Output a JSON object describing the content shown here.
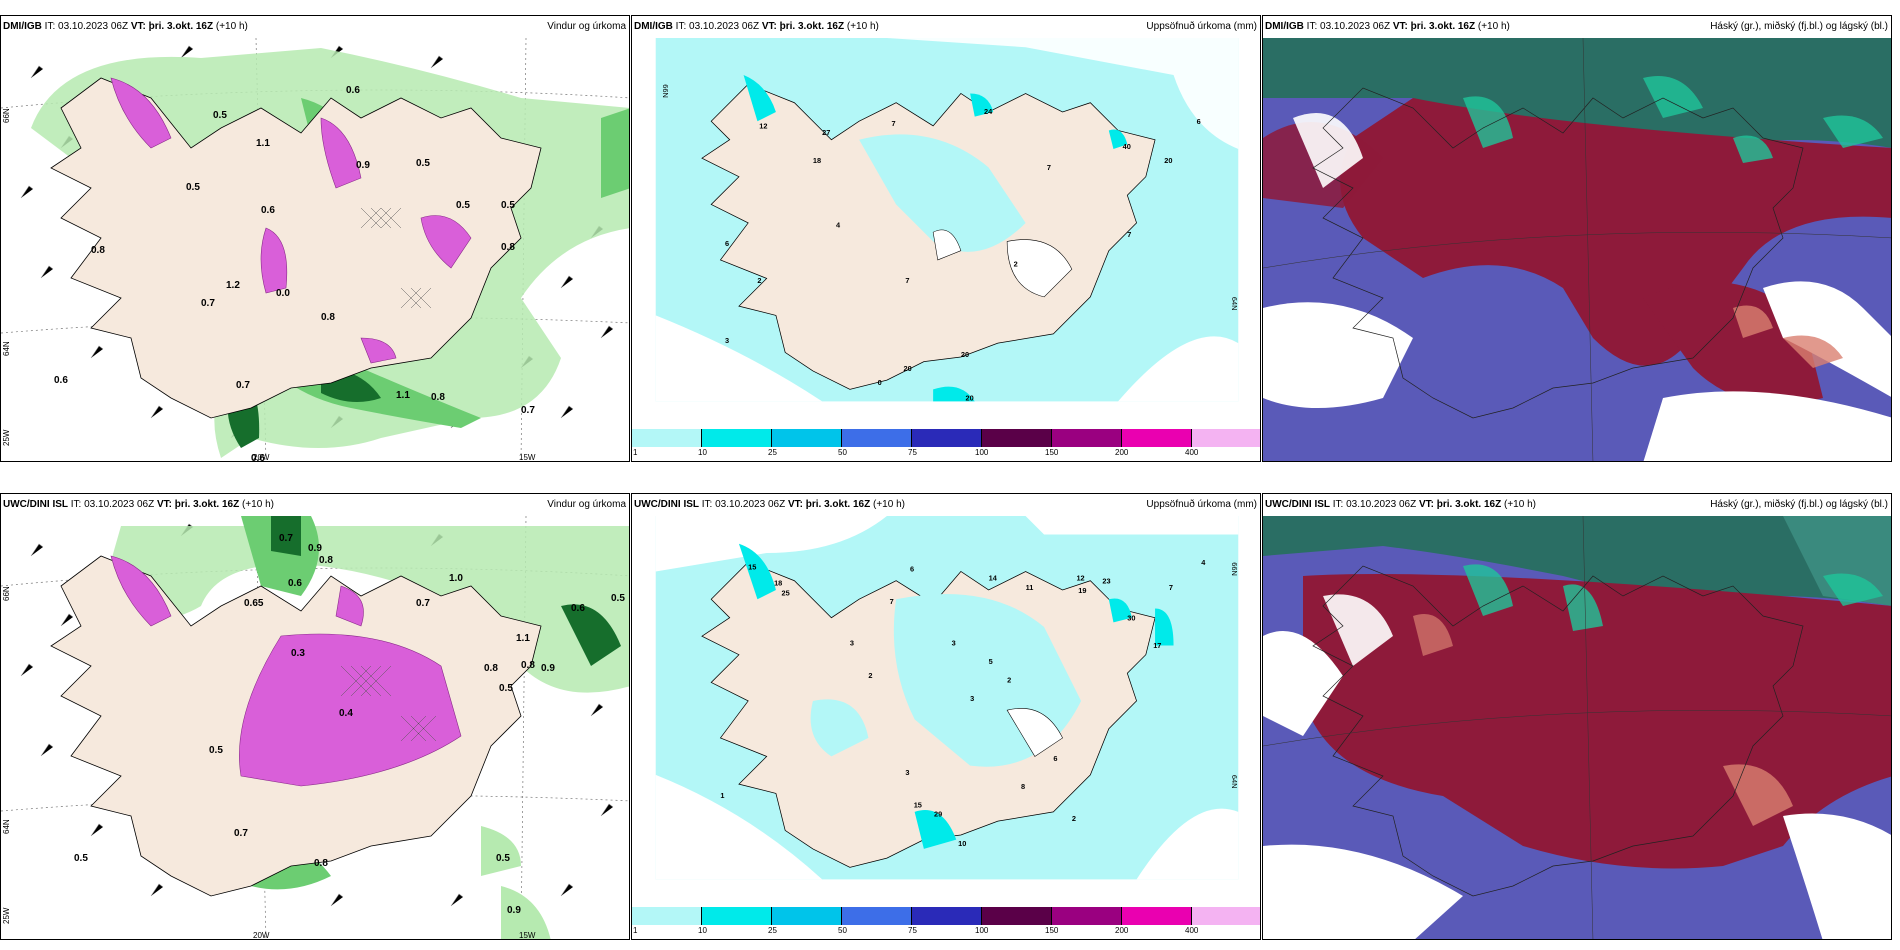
{
  "panels": {
    "p1": {
      "model": "DMI/IGB",
      "it": "IT: 03.10.2023 06Z",
      "vt_label": "VT:",
      "vt": "þri. 3.okt. 16Z",
      "lead": "(+10 h)",
      "title": "Vindur og úrkoma"
    },
    "p2": {
      "model": "DMI/IGB",
      "it": "IT: 03.10.2023 06Z",
      "vt_label": "VT:",
      "vt": "þri. 3.okt. 16Z",
      "lead": "(+10 h)",
      "title": "Uppsöfnuð úrkoma (mm)"
    },
    "p3": {
      "model": "DMI/IGB",
      "it": "IT: 03.10.2023 06Z",
      "vt_label": "VT:",
      "vt": "þri. 3.okt. 16Z",
      "lead": "(+10 h)",
      "title": "Háský (gr.), miðský (fj.bl.) og lágský (bl.)"
    },
    "p4": {
      "model": "UWC/DINI ISL",
      "it": "IT: 03.10.2023 06Z",
      "vt_label": "VT:",
      "vt": "þri. 3.okt. 16Z",
      "lead": "(+10 h)",
      "title": "Vindur og úrkoma"
    },
    "p5": {
      "model": "UWC/DINI ISL",
      "it": "IT: 03.10.2023 06Z",
      "vt_label": "VT:",
      "vt": "þri. 3.okt. 16Z",
      "lead": "(+10 h)",
      "title": "Uppsöfnuð úrkoma (mm)"
    },
    "p6": {
      "model": "UWC/DINI ISL",
      "it": "IT: 03.10.2023 06Z",
      "vt_label": "VT:",
      "vt": "þri. 3.okt. 16Z",
      "lead": "(+10 h)",
      "title": "Háský (gr.), miðský (fj.bl.) og lágský (bl.)"
    }
  },
  "grid_labels": {
    "lat_66": "66N",
    "lat_64": "64N",
    "lon_25": "25W",
    "lon_20": "20W",
    "lon_15": "15W"
  },
  "colorbar": {
    "ticks": [
      "1",
      "10",
      "25",
      "50",
      "75",
      "100",
      "150",
      "200",
      "400"
    ],
    "colors": [
      "#b3f7f7",
      "#00eaea",
      "#00c4ea",
      "#3d6ee8",
      "#2a2ab8",
      "#5a0048",
      "#9a0080",
      "#ea00b0",
      "#f4b3f2"
    ]
  },
  "colors": {
    "land": "#f6e9dd",
    "green_light": "#b6eab0",
    "green_mid": "#6ccd72",
    "green_dark": "#166e2c",
    "pink": "#d95fd9",
    "cyan_light": "#b3f7f7",
    "maroon": "#8e1a3a",
    "purple": "#5a5ab8",
    "teal": "#2a6e64"
  },
  "wind_precip_labels_top": [
    "0.5",
    "0.6",
    "0.5",
    "0.5",
    "0.5",
    "1.1",
    "0.9",
    "0.6",
    "0.8",
    "1.2",
    "0.7",
    "0.0",
    "0.8",
    "0.8",
    "0.7",
    "1.1",
    "0.8",
    "0.6",
    "0.7",
    "0.6",
    "0.5"
  ],
  "wind_precip_labels_bottom": [
    "0.7",
    "0.9",
    "0.8",
    "0.6",
    "0.65",
    "1.0",
    "0.7",
    "0.5",
    "1.1",
    "0.6",
    "0.8",
    "0.8",
    "0.9",
    "0.5",
    "0.3",
    "0.4",
    "0.5",
    "0.7",
    "0.5",
    "0.8",
    "0.5",
    "0.9"
  ],
  "accum_labels_top": [
    "12",
    "27",
    "18",
    "7",
    "4",
    "2",
    "3",
    "7",
    "7",
    "24",
    "40",
    "20",
    "6",
    "7",
    "2",
    "6",
    "20",
    "20",
    "20",
    "0"
  ],
  "accum_labels_bottom": [
    "15",
    "18",
    "25",
    "7",
    "6",
    "3",
    "2",
    "14",
    "11",
    "12",
    "23",
    "19",
    "30",
    "17",
    "7",
    "4",
    "3",
    "5",
    "2",
    "3",
    "15",
    "29",
    "10",
    "1",
    "6",
    "8",
    "3",
    "2"
  ]
}
